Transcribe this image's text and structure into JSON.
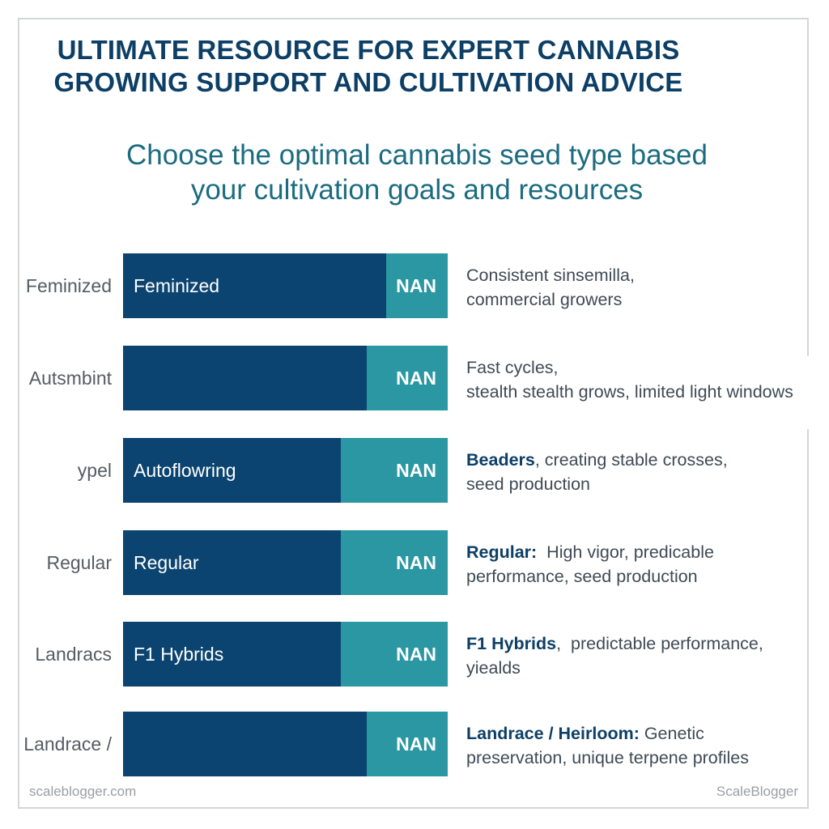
{
  "header": {
    "title_line1": "ULTIMATE RESOURCE FOR EXPERT  CANNABIS",
    "title_line2": "GROWING SUPPORT AND CULTIVATION ADVICE",
    "subtitle_line1": "Choose the optimal cannabis seed type based",
    "subtitle_line2": "your cultivation goals and resources"
  },
  "colors": {
    "primary": "#0b4470",
    "secondary": "#2a97a3",
    "title": "#0d3f66",
    "subtitle": "#1b6c80"
  },
  "chart_data": {
    "type": "bar",
    "orientation": "horizontal",
    "stacked": true,
    "grid": false,
    "categories": [
      "Feminized",
      "Autsmbint",
      "ypel",
      "Regular",
      "Landracs",
      "Landrace /"
    ],
    "bar_labels": [
      "Feminized",
      "",
      "Autoflowring",
      "Regular",
      "F1 Hybrids",
      ""
    ],
    "value_labels": [
      "NAN",
      "NAN",
      "NAN",
      "NAN",
      "NAN",
      "NAN"
    ],
    "primary_fraction": [
      0.81,
      0.75,
      0.67,
      0.67,
      0.67,
      0.75
    ],
    "descriptions": [
      {
        "bold": "",
        "line1": "Consistent sinsemilla,",
        "line2": "commercial growers"
      },
      {
        "bold": "",
        "line1": "Fast cycles,",
        "line2": "stealth stealth grows, limited light windows"
      },
      {
        "bold": "Beaders",
        "line1": ", creating stable crosses,",
        "line2": "seed production"
      },
      {
        "bold": "Regular:",
        "line1": "  High vigor, predicable",
        "line2": "performance, seed production"
      },
      {
        "bold": "F1 Hybrids",
        "line1": ",  predictable performance,",
        "line2": "yiealds"
      },
      {
        "bold": "Landrace / Heirloom:",
        "line1": " Genetic",
        "line2": "preservation, unique terpene profiles"
      }
    ]
  },
  "footer": {
    "left": "scaleblogger.com",
    "right": "ScaleBlogger"
  }
}
